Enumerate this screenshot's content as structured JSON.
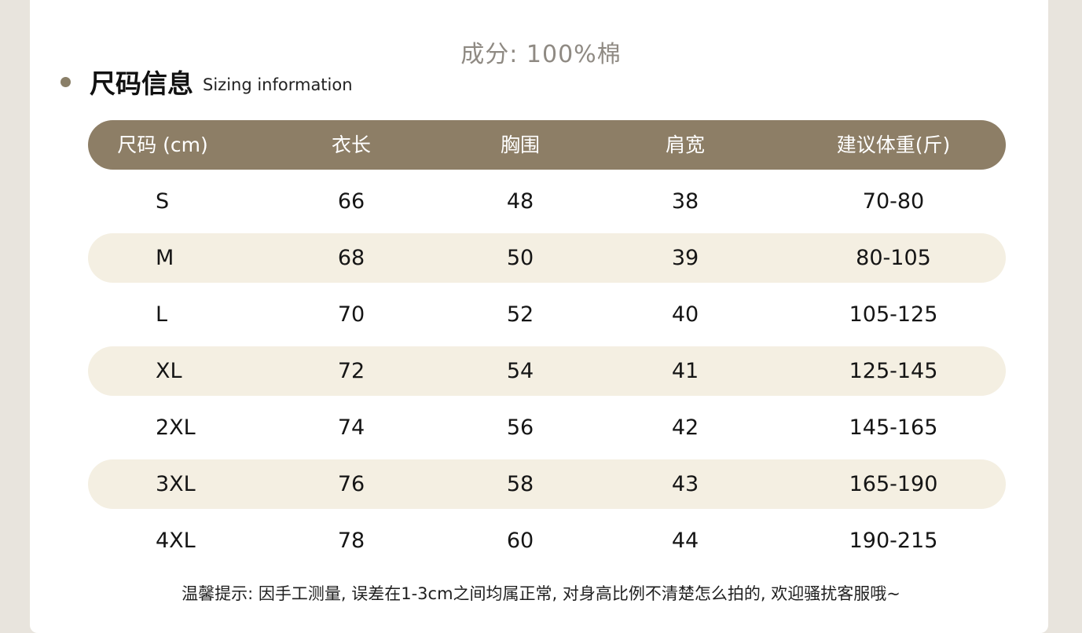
{
  "material_text": "成分: 100%棉",
  "heading": {
    "cn": "尺码信息",
    "en": "Sizing information"
  },
  "table": {
    "headers": [
      "尺码 (cm)",
      "衣长",
      "胸围",
      "肩宽",
      "建议体重(斤)"
    ],
    "rows": [
      [
        "S",
        "66",
        "48",
        "38",
        "70-80"
      ],
      [
        "M",
        "68",
        "50",
        "39",
        "80-105"
      ],
      [
        "L",
        "70",
        "52",
        "40",
        "105-125"
      ],
      [
        "XL",
        "72",
        "54",
        "41",
        "125-145"
      ],
      [
        "2XL",
        "74",
        "56",
        "42",
        "145-165"
      ],
      [
        "3XL",
        "76",
        "58",
        "43",
        "165-190"
      ],
      [
        "4XL",
        "78",
        "60",
        "44",
        "190-215"
      ]
    ]
  },
  "tip_text": "温馨提示: 因手工测量, 误差在1-3cm之间均属正常, 对身高比例不清楚怎么拍的, 欢迎骚扰客服哦~",
  "colors": {
    "header_bg": "#8d7e66",
    "stripe_bg": "#f4efe2",
    "bullet": "#8a7f68"
  }
}
